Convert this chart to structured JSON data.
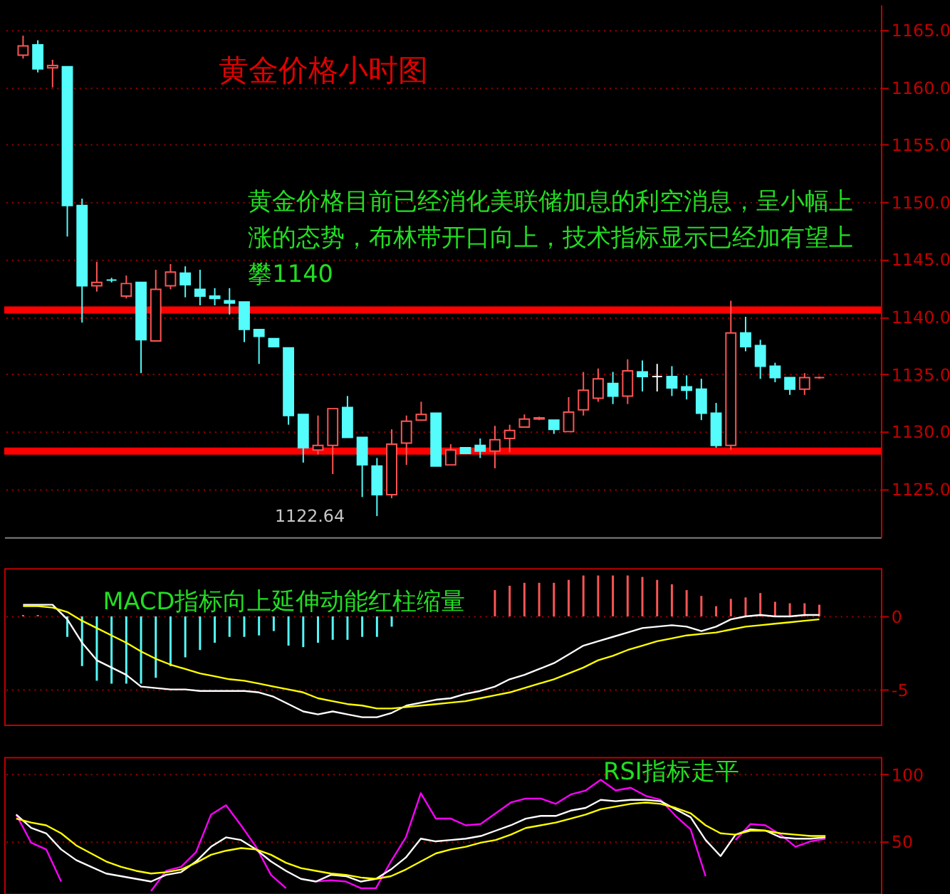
{
  "chart_data": [
    {
      "type": "candlestick",
      "title": "黄金价格小时图",
      "annotations": [
        "黄金价格目前已经消化美联储加息的利空消息，呈小幅上涨的态势，布林带开口向上，技术指标显示已经加有望上攀1140",
        "1122.64"
      ],
      "categories": [
        null,
        null,
        null,
        null,
        null,
        null,
        null,
        null,
        null,
        null,
        null,
        null,
        null,
        null,
        null,
        null,
        null,
        null,
        null,
        null,
        null,
        null,
        null,
        null,
        null,
        null,
        null,
        null,
        null,
        null,
        null,
        null,
        null,
        null,
        null,
        null,
        null,
        null,
        null,
        null,
        null,
        null,
        null,
        null,
        null,
        null,
        null,
        null,
        null,
        null,
        null,
        null,
        null,
        null,
        null
      ],
      "ohlc": [
        [
          1162.8,
          1164.5,
          1162.5,
          1163.6
        ],
        [
          1163.7,
          1164.1,
          1161.3,
          1161.6
        ],
        [
          1161.7,
          1162.4,
          1160.0,
          1161.9
        ],
        [
          1161.8,
          1161.8,
          1147.0,
          1149.7
        ],
        [
          1149.7,
          1150.3,
          1139.5,
          1142.7
        ],
        [
          1142.7,
          1144.8,
          1142.2,
          1143.0
        ],
        [
          1143.2,
          1143.4,
          1143.0,
          1143.2
        ],
        [
          1141.8,
          1143.6,
          1141.6,
          1142.9
        ],
        [
          1143.0,
          1143.0,
          1135.1,
          1138.0
        ],
        [
          1137.9,
          1144.1,
          1137.9,
          1142.4
        ],
        [
          1142.7,
          1144.6,
          1142.4,
          1143.9
        ],
        [
          1143.8,
          1144.4,
          1141.7,
          1142.8
        ],
        [
          1142.4,
          1144.1,
          1141.0,
          1141.8
        ],
        [
          1141.8,
          1142.5,
          1141.0,
          1141.6
        ],
        [
          1141.4,
          1142.5,
          1140.2,
          1141.2
        ],
        [
          1141.3,
          1141.3,
          1137.8,
          1138.9
        ],
        [
          1138.9,
          1138.9,
          1135.9,
          1138.3
        ],
        [
          1138.1,
          1138.1,
          1137.4,
          1137.4
        ],
        [
          1137.3,
          1137.3,
          1130.6,
          1131.4
        ],
        [
          1131.5,
          1131.5,
          1127.3,
          1128.6
        ],
        [
          1128.4,
          1131.4,
          1128.0,
          1128.8
        ],
        [
          1128.8,
          1132.0,
          1126.3,
          1132.0
        ],
        [
          1132.1,
          1133.1,
          1129.5,
          1129.5
        ],
        [
          1129.5,
          1129.5,
          1124.3,
          1127.1
        ],
        [
          1127.0,
          1127.7,
          1122.64,
          1124.5
        ],
        [
          1124.5,
          1130.2,
          1124.2,
          1128.9
        ],
        [
          1129.0,
          1131.4,
          1127.1,
          1130.9
        ],
        [
          1131.0,
          1132.6,
          1131.0,
          1131.5
        ],
        [
          1131.6,
          1131.6,
          1127.0,
          1127.0
        ],
        [
          1127.1,
          1128.9,
          1127.1,
          1128.4
        ],
        [
          1128.6,
          1128.6,
          1128.1,
          1128.1
        ],
        [
          1128.8,
          1129.4,
          1127.7,
          1128.3
        ],
        [
          1128.3,
          1130.5,
          1126.8,
          1129.3
        ],
        [
          1129.4,
          1130.6,
          1128.2,
          1130.1
        ],
        [
          1130.4,
          1131.5,
          1130.4,
          1131.1
        ],
        [
          1131.1,
          1131.3,
          1131.0,
          1131.2
        ],
        [
          1131.0,
          1131.0,
          1129.8,
          1130.2
        ],
        [
          1130.0,
          1133.0,
          1130.0,
          1131.7
        ],
        [
          1131.9,
          1135.2,
          1131.4,
          1133.6
        ],
        [
          1132.9,
          1135.5,
          1132.6,
          1134.6
        ],
        [
          1134.2,
          1135.2,
          1132.4,
          1133.1
        ],
        [
          1133.1,
          1136.3,
          1132.4,
          1135.3
        ],
        [
          1135.2,
          1136.2,
          1133.5,
          1134.8
        ],
        [
          1134.8,
          1135.9,
          1133.5,
          1134.8
        ],
        [
          1134.8,
          1135.7,
          1133.1,
          1133.8
        ],
        [
          1133.9,
          1134.9,
          1132.8,
          1133.6
        ],
        [
          1133.7,
          1134.6,
          1131.0,
          1131.6
        ],
        [
          1131.6,
          1132.5,
          1128.6,
          1128.8
        ],
        [
          1128.8,
          1141.4,
          1128.4,
          1138.6
        ],
        [
          1138.6,
          1140.0,
          1137.0,
          1137.4
        ],
        [
          1137.5,
          1138.0,
          1134.6,
          1135.7
        ],
        [
          1135.7,
          1136.0,
          1134.3,
          1134.7
        ],
        [
          1134.7,
          1134.7,
          1133.2,
          1133.7
        ],
        [
          1133.7,
          1135.1,
          1133.2,
          1134.7
        ],
        [
          1134.7,
          1134.8,
          1134.6,
          1134.7
        ]
      ],
      "colors": [
        "#ff5555",
        "#54fcfc",
        "#ff5555",
        "#54fcfc",
        "#54fcfc",
        "#ff5555",
        "#54fcfc",
        "#ff5555",
        "#54fcfc",
        "#ff5555",
        "#ff5555",
        "#54fcfc",
        "#54fcfc",
        "#54fcfc",
        "#54fcfc",
        "#54fcfc",
        "#54fcfc",
        "#54fcfc",
        "#54fcfc",
        "#54fcfc",
        "#ff5555",
        "#ff5555",
        "#54fcfc",
        "#54fcfc",
        "#54fcfc",
        "#ff5555",
        "#ff5555",
        "#ff5555",
        "#54fcfc",
        "#ff5555",
        "#54fcfc",
        "#54fcfc",
        "#ff5555",
        "#ff5555",
        "#ff5555",
        "#ff5555",
        "#54fcfc",
        "#ff5555",
        "#ff5555",
        "#ff5555",
        "#54fcfc",
        "#ff5555",
        "#54fcfc",
        "#ffffff",
        "#54fcfc",
        "#54fcfc",
        "#54fcfc",
        "#54fcfc",
        "#ff5555",
        "#54fcfc",
        "#54fcfc",
        "#54fcfc",
        "#54fcfc",
        "#ff5555",
        "#ff5555"
      ],
      "ylim": [
        1120.8,
        1167.2
      ],
      "yticks": [
        {
          "value": 1125,
          "label": "1125.0"
        },
        {
          "value": 1130,
          "label": "1130.0"
        },
        {
          "value": 1135,
          "label": "1135.0"
        },
        {
          "value": 1140,
          "label": "1140.0"
        },
        {
          "value": 1145,
          "label": "1145.0"
        },
        {
          "value": 1150,
          "label": "1150.0"
        },
        {
          "value": 1155,
          "label": "1155.0"
        },
        {
          "value": 1160,
          "label": "1160.0"
        },
        {
          "value": 1165,
          "label": "1165.0"
        }
      ],
      "grid": "y",
      "tick_labels": "y",
      "ref_lines": [
        {
          "axis": "y",
          "value": 1140.6,
          "color": "#ff0000"
        },
        {
          "axis": "y",
          "value": 1128.3,
          "color": "#ff0000"
        }
      ]
    },
    {
      "type": "bar",
      "annotations": [
        "MACD指标向上延伸动能红柱缩量"
      ],
      "categories": [
        null,
        null,
        null,
        null,
        null,
        null,
        null,
        null,
        null,
        null,
        null,
        null,
        null,
        null,
        null,
        null,
        null,
        null,
        null,
        null,
        null,
        null,
        null,
        null,
        null,
        null,
        null,
        null,
        null,
        null,
        null,
        null,
        null,
        null,
        null,
        null,
        null,
        null,
        null,
        null,
        null,
        null,
        null,
        null,
        null,
        null,
        null,
        null,
        null,
        null,
        null,
        null,
        null,
        null,
        null
      ],
      "series": [
        {
          "type": "bar",
          "color": "#ff5555",
          "values": [
            0.1,
            0.1,
            null,
            null,
            null,
            null,
            null,
            null,
            null,
            null,
            null,
            null,
            null,
            null,
            null,
            null,
            null,
            null,
            null,
            null,
            null,
            null,
            null,
            null,
            null,
            null,
            null,
            null,
            null,
            null,
            null,
            null,
            1.8,
            2.1,
            2.3,
            2.3,
            2.3,
            2.5,
            2.8,
            2.8,
            2.8,
            2.8,
            2.7,
            2.5,
            2.2,
            1.8,
            1.4,
            0.7,
            1.2,
            1.3,
            1.6,
            1.0,
            0.9,
            0.9,
            0.8
          ]
        },
        {
          "type": "bar",
          "color": "#54fcfc",
          "values": [
            null,
            null,
            null,
            -1.4,
            -3.4,
            -4.4,
            -4.6,
            -4.6,
            -4.6,
            -4.2,
            -3.4,
            -2.8,
            -2.3,
            -1.8,
            -1.4,
            -1.4,
            -1.3,
            -1.0,
            -2.0,
            -2.1,
            -1.8,
            -1.6,
            -1.6,
            -1.4,
            -1.4,
            -0.7,
            null,
            null,
            null,
            null,
            null,
            null,
            null,
            null,
            null,
            null,
            null,
            null,
            null,
            null,
            null,
            null,
            null,
            null,
            null,
            null,
            null,
            null,
            null,
            null,
            null,
            null,
            null,
            null,
            null
          ]
        },
        {
          "type": "line",
          "color": "#ffffff",
          "values": [
            0.8,
            0.8,
            0.8,
            -0.2,
            -1.8,
            -3.0,
            -3.5,
            -4.0,
            -4.8,
            -4.9,
            -5.0,
            -5.0,
            -5.1,
            -5.1,
            -5.1,
            -5.1,
            -5.2,
            -5.5,
            -6.0,
            -6.5,
            -6.7,
            -6.5,
            -6.7,
            -6.9,
            -6.9,
            -6.6,
            -6.1,
            -5.9,
            -5.7,
            -5.6,
            -5.3,
            -5.1,
            -4.8,
            -4.3,
            -4.0,
            -3.6,
            -3.2,
            -2.6,
            -2.0,
            -1.7,
            -1.4,
            -1.1,
            -0.8,
            -0.7,
            -0.6,
            -0.7,
            -1.0,
            -0.7,
            -0.2,
            0.0,
            0.1,
            0.0,
            0.0,
            0.1,
            0.1
          ]
        },
        {
          "type": "line",
          "color": "#ffff00",
          "values": [
            0.7,
            0.7,
            0.6,
            0.3,
            -0.3,
            -0.8,
            -1.3,
            -1.8,
            -2.4,
            -2.9,
            -3.3,
            -3.6,
            -3.9,
            -4.1,
            -4.3,
            -4.4,
            -4.6,
            -4.8,
            -5.0,
            -5.2,
            -5.6,
            -5.8,
            -6.0,
            -6.1,
            -6.3,
            -6.3,
            -6.2,
            -6.1,
            -6.0,
            -5.9,
            -5.8,
            -5.6,
            -5.4,
            -5.2,
            -4.9,
            -4.6,
            -4.3,
            -3.9,
            -3.5,
            -3.0,
            -2.7,
            -2.3,
            -2.0,
            -1.7,
            -1.5,
            -1.3,
            -1.2,
            -1.1,
            -0.9,
            -0.7,
            -0.6,
            -0.5,
            -0.4,
            -0.3,
            -0.2
          ]
        }
      ],
      "ylim": [
        -7.4,
        3.3
      ],
      "yticks": [
        0,
        -5
      ],
      "grid": "y",
      "tick_labels": "y"
    },
    {
      "type": "line",
      "annotations": [
        "RSI指标走平"
      ],
      "categories": [
        null,
        null,
        null,
        null,
        null,
        null,
        null,
        null,
        null,
        null,
        null,
        null,
        null,
        null,
        null,
        null,
        null,
        null,
        null,
        null,
        null,
        null,
        null,
        null,
        null,
        null,
        null,
        null,
        null,
        null,
        null,
        null,
        null,
        null,
        null,
        null,
        null,
        null,
        null,
        null,
        null,
        null,
        null,
        null,
        null,
        null,
        null,
        null,
        null,
        null,
        null,
        null,
        null,
        null,
        null
      ],
      "series": [
        {
          "type": "line",
          "color": "#ff00ff",
          "values": [
            70,
            49,
            44,
            20,
            null,
            null,
            null,
            null,
            null,
            13,
            28,
            31,
            42,
            70,
            77,
            62,
            46,
            25,
            15,
            null,
            20,
            21,
            20,
            15,
            15,
            35,
            53,
            86,
            67,
            67,
            62,
            63,
            71,
            79,
            82,
            82,
            78,
            85,
            88,
            96,
            88,
            90,
            84,
            81,
            69,
            59,
            24,
            null,
            51,
            63,
            62,
            55,
            46,
            50,
            52
          ]
        },
        {
          "type": "line",
          "color": "#ffffff",
          "values": [
            70,
            60,
            56,
            44,
            36,
            31,
            26,
            24,
            22,
            20,
            25,
            27,
            35,
            46,
            53,
            51,
            44,
            35,
            28,
            22,
            20,
            25,
            24,
            20,
            22,
            29,
            38,
            52,
            50,
            51,
            52,
            54,
            58,
            62,
            67,
            69,
            69,
            73,
            75,
            81,
            80,
            81,
            81,
            80,
            74,
            68,
            51,
            39,
            55,
            59,
            58,
            53,
            52,
            52,
            53
          ]
        },
        {
          "type": "line",
          "color": "#ffff00",
          "values": [
            67,
            64,
            62,
            56,
            47,
            41,
            35,
            31,
            28,
            26,
            27,
            29,
            34,
            40,
            43,
            45,
            44,
            40,
            34,
            30,
            28,
            26,
            25,
            23,
            22,
            24,
            29,
            35,
            41,
            44,
            46,
            49,
            51,
            55,
            60,
            62,
            64,
            67,
            70,
            74,
            76,
            78,
            79,
            78,
            75,
            71,
            62,
            56,
            55,
            58,
            58,
            56,
            55,
            54,
            54
          ]
        }
      ],
      "ylim": [
        11,
        113
      ],
      "yticks": [
        50,
        100
      ],
      "grid": "y",
      "tick_labels": "y"
    }
  ]
}
